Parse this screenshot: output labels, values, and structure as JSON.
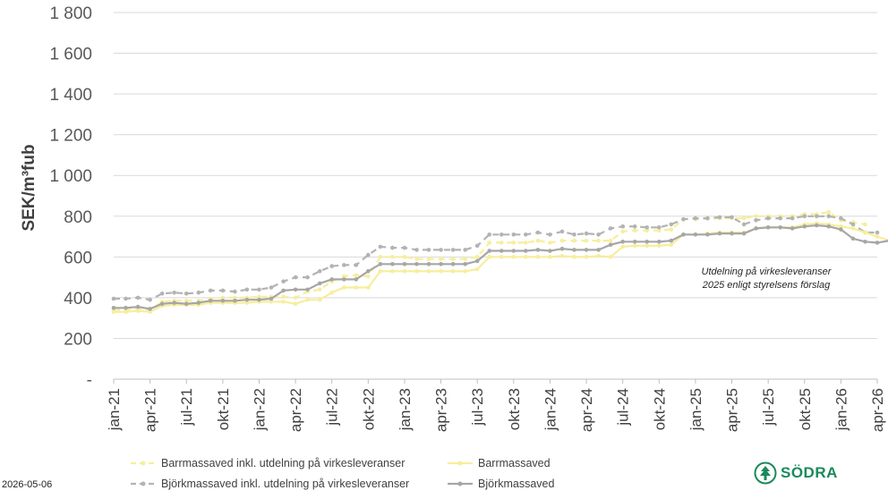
{
  "chart_data": {
    "type": "line",
    "ylabel": "SEK/m³fub",
    "ylim": [
      0,
      1800
    ],
    "yticks": [
      "-",
      "200",
      "400",
      "600",
      "800",
      "1 000",
      "1 200",
      "1 400",
      "1 600",
      "1 800"
    ],
    "xticks": [
      "jan-21",
      "apr-21",
      "jul-21",
      "okt-21",
      "jan-22",
      "apr-22",
      "jul-22",
      "okt-22",
      "jan-23",
      "apr-23",
      "jul-23",
      "okt-23",
      "jan-24",
      "apr-24",
      "jul-24",
      "okt-24",
      "jan-25",
      "apr-25",
      "jul-25",
      "okt-25",
      "jan-26",
      "apr-26"
    ],
    "x_start": "jan-21",
    "grid": true,
    "legend_position": "bottom",
    "annotation": [
      "Utdelning på virkesleveranser",
      "2025 enligt styrelsens förslag"
    ],
    "series": [
      {
        "name": "Barrmassaved inkl. utdelning på virkesleveranser",
        "color": "#f7ee9c",
        "style": "dashed",
        "values": [
          340,
          340,
          345,
          340,
          380,
          385,
          385,
          385,
          395,
          400,
          400,
          400,
          405,
          405,
          405,
          400,
          430,
          440,
          480,
          505,
          510,
          505,
          600,
          600,
          600,
          590,
          590,
          590,
          590,
          590,
          600,
          670,
          670,
          670,
          670,
          680,
          670,
          680,
          680,
          680,
          680,
          680,
          725,
          730,
          730,
          730,
          735,
          785,
          785,
          790,
          790,
          790,
          790,
          800,
          800,
          800,
          800,
          810,
          810,
          820,
          780,
          770,
          760
        ]
      },
      {
        "name": "Barrmassaved",
        "color": "#f7ee9c",
        "style": "solid",
        "values": [
          330,
          330,
          335,
          330,
          360,
          365,
          365,
          365,
          375,
          375,
          375,
          375,
          380,
          380,
          380,
          370,
          390,
          390,
          425,
          450,
          450,
          450,
          530,
          530,
          530,
          530,
          530,
          530,
          530,
          530,
          540,
          600,
          600,
          600,
          600,
          600,
          600,
          605,
          600,
          600,
          605,
          600,
          650,
          655,
          655,
          655,
          660,
          710,
          710,
          715,
          720,
          720,
          720,
          740,
          745,
          745,
          745,
          760,
          765,
          760,
          750,
          740,
          720,
          700,
          680,
          660,
          640,
          610
        ]
      },
      {
        "name": "Björkmassaved inkl. utdelning på virkesleveranser",
        "color": "#b3b3b3",
        "style": "dashed",
        "values": [
          395,
          395,
          400,
          390,
          420,
          425,
          420,
          425,
          435,
          435,
          430,
          440,
          440,
          450,
          480,
          500,
          500,
          530,
          555,
          560,
          560,
          610,
          650,
          645,
          645,
          635,
          635,
          635,
          635,
          635,
          655,
          710,
          710,
          710,
          710,
          720,
          710,
          725,
          710,
          715,
          710,
          740,
          750,
          750,
          745,
          745,
          760,
          785,
          790,
          790,
          795,
          795,
          760,
          780,
          790,
          790,
          790,
          800,
          800,
          800,
          790,
          760,
          720,
          720
        ]
      },
      {
        "name": "Björkmassaved",
        "color": "#a6a6a6",
        "style": "solid",
        "values": [
          350,
          350,
          355,
          345,
          370,
          375,
          370,
          375,
          385,
          385,
          385,
          390,
          390,
          395,
          435,
          440,
          440,
          470,
          490,
          490,
          490,
          530,
          565,
          565,
          565,
          565,
          565,
          565,
          565,
          565,
          580,
          630,
          630,
          630,
          630,
          635,
          630,
          640,
          635,
          635,
          635,
          660,
          675,
          675,
          675,
          675,
          680,
          710,
          710,
          710,
          715,
          715,
          715,
          740,
          745,
          745,
          740,
          750,
          755,
          750,
          735,
          690,
          675,
          670,
          680,
          660,
          635,
          610,
          590,
          575
        ]
      }
    ]
  },
  "footer": {
    "date": "2026-05-06",
    "logo_text": "SÖDRA",
    "logo_icon": "tree-icon"
  }
}
